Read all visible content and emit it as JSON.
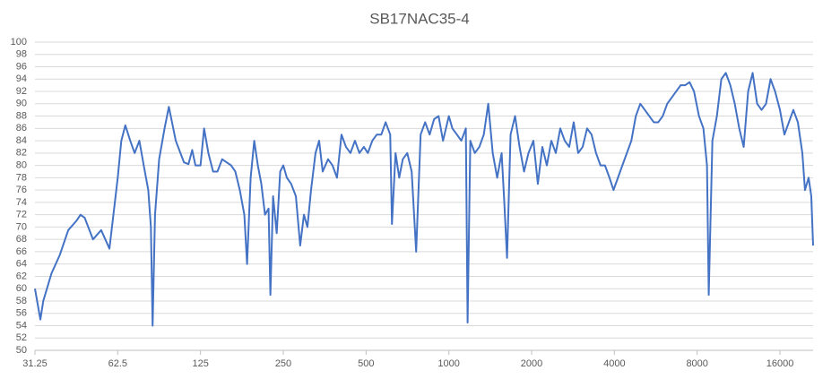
{
  "chart_data": {
    "type": "line",
    "title": "SB17NAC35-4",
    "x": [
      31.25,
      32.7,
      33.5,
      35.9,
      38.5,
      41.3,
      44.2,
      45.75,
      47.4,
      50.8,
      54.4,
      58.3,
      62.5,
      64.4,
      66.6,
      69.4,
      72,
      74.9,
      77.7,
      80.7,
      82.5,
      83.7,
      85.4,
      88.4,
      92.5,
      95.9,
      101.6,
      108.8,
      113,
      116.6,
      119.8,
      125,
      128.8,
      133.5,
      138.9,
      144,
      149.8,
      161.5,
      167.3,
      173.7,
      180.4,
      184.6,
      190.2,
      196,
      202,
      208,
      214.5,
      221,
      224.4,
      229.5,
      236.6,
      243.6,
      250,
      257.6,
      267,
      277.8,
      288,
      297.2,
      306,
      315.4,
      327.4,
      337.5,
      347.7,
      363.6,
      377.5,
      392,
      407,
      422.6,
      438.7,
      455.5,
      472.9,
      490.8,
      507.6,
      526.8,
      547,
      568,
      589,
      612,
      621,
      640,
      660,
      680,
      706,
      732.5,
      760.5,
      789.6,
      820,
      851.5,
      884,
      917.5,
      952.5,
      1000,
      1030,
      1070,
      1110,
      1153,
      1170,
      1197,
      1243,
      1291,
      1340,
      1391,
      1444,
      1499,
      1556,
      1591,
      1628,
      1677,
      1741,
      1808,
      1877,
      1948,
      2030,
      2107,
      2188,
      2272,
      2359,
      2449,
      2542,
      2639,
      2740,
      2845,
      2953,
      3066,
      3183,
      3304,
      3430,
      3561,
      3697,
      3839,
      3970,
      4120,
      4276,
      4440,
      4610,
      4786,
      4969,
      5160,
      5357,
      5561,
      5776,
      5996,
      6225,
      6462,
      6709,
      6964,
      7230,
      7506,
      7792,
      8122,
      8429,
      8685,
      8814,
      9088,
      9435,
      9795,
      10170,
      10560,
      10960,
      11380,
      11810,
      12260,
      12730,
      13220,
      13720,
      14240,
      14790,
      15360,
      16000,
      16610,
      17240,
      17900,
      18590,
      19300,
      19730,
      20340,
      20800,
      21120
    ],
    "values": [
      60,
      55,
      58,
      62.5,
      65.5,
      69.5,
      71,
      72,
      71.5,
      68,
      69.5,
      66.5,
      78,
      84,
      86.5,
      84,
      82,
      84,
      80,
      76,
      70,
      54,
      72,
      81,
      86,
      89.5,
      84,
      80.5,
      80.2,
      82.5,
      80,
      80,
      86,
      82,
      79,
      79,
      81,
      80,
      79,
      76,
      72,
      64,
      78,
      84,
      80,
      77,
      72,
      73,
      59,
      75,
      69,
      79,
      80,
      78,
      77,
      75,
      67,
      72,
      70,
      76,
      82,
      84,
      79,
      81,
      80,
      78,
      85,
      83,
      82,
      84,
      82,
      83,
      82,
      84,
      85,
      85,
      87,
      85,
      70.5,
      82,
      78,
      81,
      82,
      79,
      66,
      85,
      87,
      85,
      87.5,
      88,
      84,
      88,
      86,
      85,
      84,
      86,
      54.5,
      84,
      82,
      83,
      85,
      90,
      82,
      78,
      82,
      74,
      65,
      85,
      88,
      83,
      79,
      82,
      84,
      77,
      83,
      80,
      84,
      82,
      86,
      84,
      83,
      87,
      82,
      83,
      86,
      85,
      82,
      80,
      80,
      78,
      76,
      78,
      80,
      82,
      84,
      88,
      90,
      89,
      88,
      87,
      87,
      88,
      90,
      91,
      92,
      93,
      93,
      93.5,
      92,
      88,
      86,
      80,
      59,
      84,
      88,
      94,
      95,
      93,
      90,
      86,
      83,
      92,
      95,
      90,
      89,
      90,
      94,
      92,
      89,
      85,
      87,
      89,
      87,
      82,
      76,
      78,
      75,
      67
    ],
    "color": "#4472c4",
    "xscale": "log",
    "xlim": [
      31.25,
      21120
    ],
    "xticks": [
      31.25,
      62.5,
      125,
      250,
      500,
      1000,
      2000,
      4000,
      8000,
      16000
    ],
    "ylim": [
      50,
      100
    ],
    "yticks": [
      50,
      52,
      54,
      56,
      58,
      60,
      62,
      64,
      66,
      68,
      70,
      72,
      74,
      76,
      78,
      80,
      82,
      84,
      86,
      88,
      90,
      92,
      94,
      96,
      98,
      100
    ],
    "grid": true
  }
}
